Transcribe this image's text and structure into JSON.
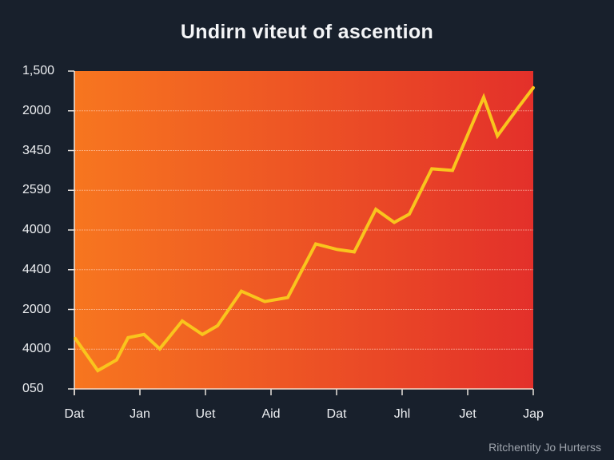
{
  "chart_data": {
    "type": "line",
    "title": "Undirn viteut of ascention",
    "xlabel": "",
    "ylabel": "",
    "yticks": [
      "1,500",
      "2000",
      "3450",
      "2590",
      "4000",
      "4400",
      "2000",
      "4000",
      "050"
    ],
    "xticks": [
      "Dat",
      "Jan",
      "Uet",
      "Aid",
      "Dat",
      "Jhl",
      "Jet",
      "Jap"
    ],
    "ylim_index": [
      0,
      8
    ],
    "grid": true,
    "legend": null,
    "background_gradient": {
      "left": "#f7761f",
      "right": "#e3302a"
    },
    "line_color": "#f9c51d",
    "series": [
      {
        "name": "ascention",
        "x_frac": [
          0.002,
          0.051,
          0.092,
          0.117,
          0.152,
          0.186,
          0.235,
          0.279,
          0.312,
          0.364,
          0.415,
          0.465,
          0.526,
          0.573,
          0.61,
          0.657,
          0.697,
          0.73,
          0.779,
          0.824,
          0.892,
          0.922,
          0.967,
          1.0
        ],
        "values": [
          1.27,
          0.46,
          0.73,
          1.29,
          1.37,
          1.01,
          1.71,
          1.37,
          1.59,
          2.46,
          2.2,
          2.3,
          3.65,
          3.51,
          3.45,
          4.52,
          4.19,
          4.4,
          5.54,
          5.5,
          7.34,
          6.37,
          7.08,
          7.58
        ]
      }
    ]
  },
  "footer": {
    "credit": "Ritchentity Jo Hurterss"
  }
}
